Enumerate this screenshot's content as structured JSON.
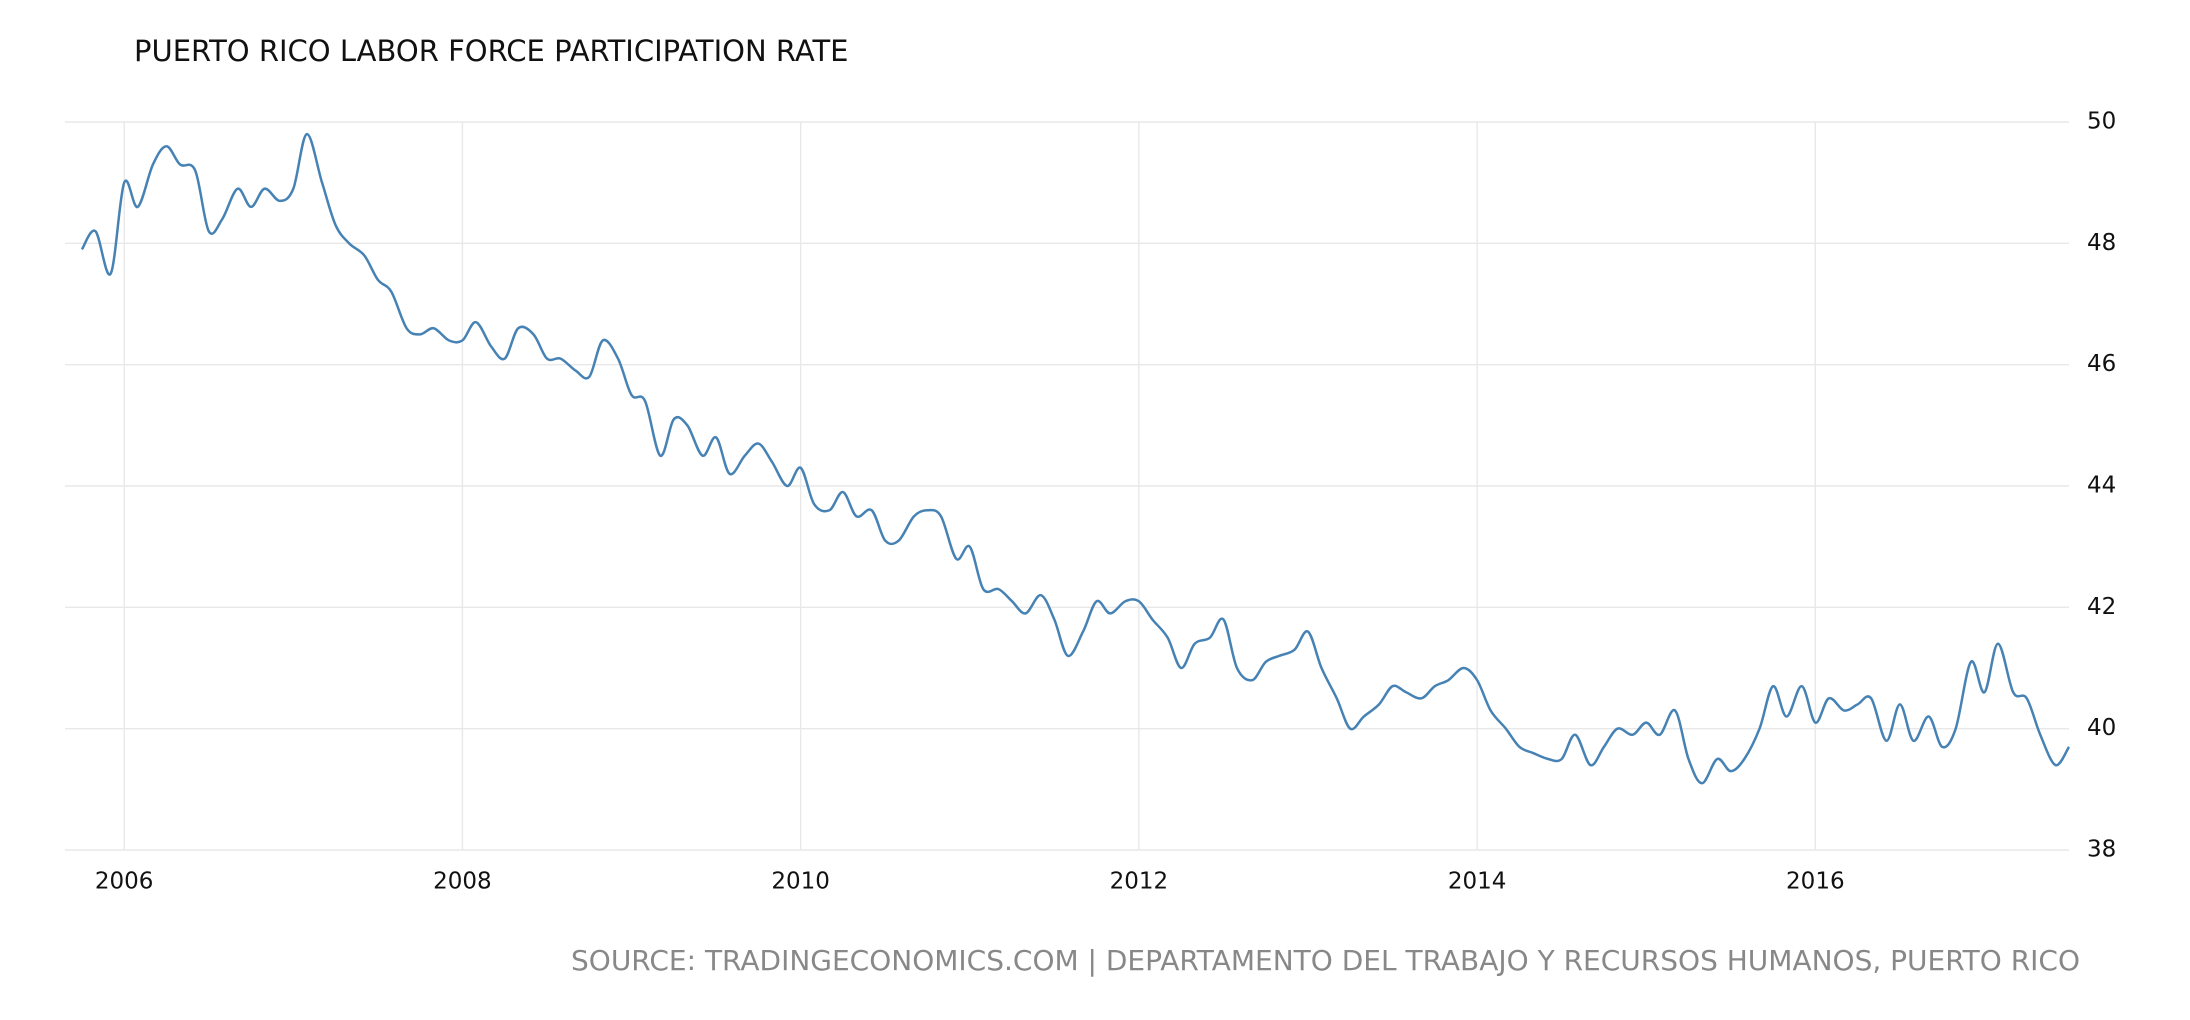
{
  "chart_data": {
    "type": "line",
    "title": "PUERTO RICO LABOR FORCE PARTICIPATION RATE",
    "source": "SOURCE: TRADINGECONOMICS.COM | DEPARTAMENTO DEL TRABAJO Y RECURSOS HUMANOS, PUERTO RICO",
    "color": "#4682b4",
    "grid": true,
    "xlim": [
      2005.65,
      2017.5
    ],
    "xticks": [
      2006,
      2008,
      2010,
      2012,
      2014,
      2016
    ],
    "ylim": [
      38,
      50
    ],
    "yticks": [
      38,
      40,
      42,
      44,
      46,
      48,
      50
    ],
    "x": [
      2005.75,
      2005.83,
      2005.92,
      2006.0,
      2006.08,
      2006.17,
      2006.25,
      2006.33,
      2006.42,
      2006.5,
      2006.58,
      2006.67,
      2006.75,
      2006.83,
      2006.92,
      2007.0,
      2007.08,
      2007.17,
      2007.25,
      2007.33,
      2007.42,
      2007.5,
      2007.58,
      2007.67,
      2007.75,
      2007.83,
      2007.92,
      2008.0,
      2008.08,
      2008.17,
      2008.25,
      2008.33,
      2008.42,
      2008.5,
      2008.58,
      2008.67,
      2008.75,
      2008.83,
      2008.92,
      2009.0,
      2009.08,
      2009.17,
      2009.25,
      2009.33,
      2009.42,
      2009.5,
      2009.58,
      2009.67,
      2009.75,
      2009.83,
      2009.92,
      2010.0,
      2010.08,
      2010.17,
      2010.25,
      2010.33,
      2010.42,
      2010.5,
      2010.58,
      2010.67,
      2010.75,
      2010.83,
      2010.92,
      2011.0,
      2011.08,
      2011.17,
      2011.25,
      2011.33,
      2011.42,
      2011.5,
      2011.58,
      2011.67,
      2011.75,
      2011.83,
      2011.92,
      2012.0,
      2012.08,
      2012.17,
      2012.25,
      2012.33,
      2012.42,
      2012.5,
      2012.58,
      2012.67,
      2012.75,
      2012.83,
      2012.92,
      2013.0,
      2013.08,
      2013.17,
      2013.25,
      2013.33,
      2013.42,
      2013.5,
      2013.58,
      2013.67,
      2013.75,
      2013.83,
      2013.92,
      2014.0,
      2014.08,
      2014.17,
      2014.25,
      2014.33,
      2014.42,
      2014.5,
      2014.58,
      2014.67,
      2014.75,
      2014.83,
      2014.92,
      2015.0,
      2015.08,
      2015.17,
      2015.25,
      2015.33,
      2015.42,
      2015.5,
      2015.58,
      2015.67,
      2015.75,
      2015.83,
      2015.92,
      2016.0,
      2016.08,
      2016.17,
      2016.25,
      2016.33,
      2016.42,
      2016.5,
      2016.58,
      2016.67,
      2016.75,
      2016.83,
      2016.92,
      2017.0,
      2017.08,
      2017.17,
      2017.25,
      2017.33,
      2017.42,
      2017.5
    ],
    "values": [
      47.9,
      48.2,
      47.5,
      49.0,
      48.6,
      49.3,
      49.6,
      49.3,
      49.2,
      48.2,
      48.4,
      48.9,
      48.6,
      48.9,
      48.7,
      48.9,
      49.8,
      49.0,
      48.3,
      48.0,
      47.8,
      47.4,
      47.2,
      46.6,
      46.5,
      46.6,
      46.4,
      46.4,
      46.7,
      46.3,
      46.1,
      46.6,
      46.5,
      46.1,
      46.1,
      45.9,
      45.8,
      46.4,
      46.1,
      45.5,
      45.4,
      44.5,
      45.1,
      45.0,
      44.5,
      44.8,
      44.2,
      44.5,
      44.7,
      44.4,
      44.0,
      44.3,
      43.7,
      43.6,
      43.9,
      43.5,
      43.6,
      43.1,
      43.1,
      43.5,
      43.6,
      43.5,
      42.8,
      43.0,
      42.3,
      42.3,
      42.1,
      41.9,
      42.2,
      41.8,
      41.2,
      41.6,
      42.1,
      41.9,
      42.1,
      42.1,
      41.8,
      41.5,
      41.0,
      41.4,
      41.5,
      41.8,
      41.0,
      40.8,
      41.1,
      41.2,
      41.3,
      41.6,
      41.0,
      40.5,
      40.0,
      40.2,
      40.4,
      40.7,
      40.6,
      40.5,
      40.7,
      40.8,
      41.0,
      40.8,
      40.3,
      40.0,
      39.7,
      39.6,
      39.5,
      39.5,
      39.9,
      39.4,
      39.7,
      40.0,
      39.9,
      40.1,
      39.9,
      40.3,
      39.5,
      39.1,
      39.5,
      39.3,
      39.5,
      40.0,
      40.7,
      40.2,
      40.7,
      40.1,
      40.5,
      40.3,
      40.4,
      40.5,
      39.8,
      40.4,
      39.8,
      40.2,
      39.7,
      40.0,
      41.1,
      40.6,
      41.4,
      40.6,
      40.5,
      39.9,
      39.4,
      39.7
    ]
  }
}
